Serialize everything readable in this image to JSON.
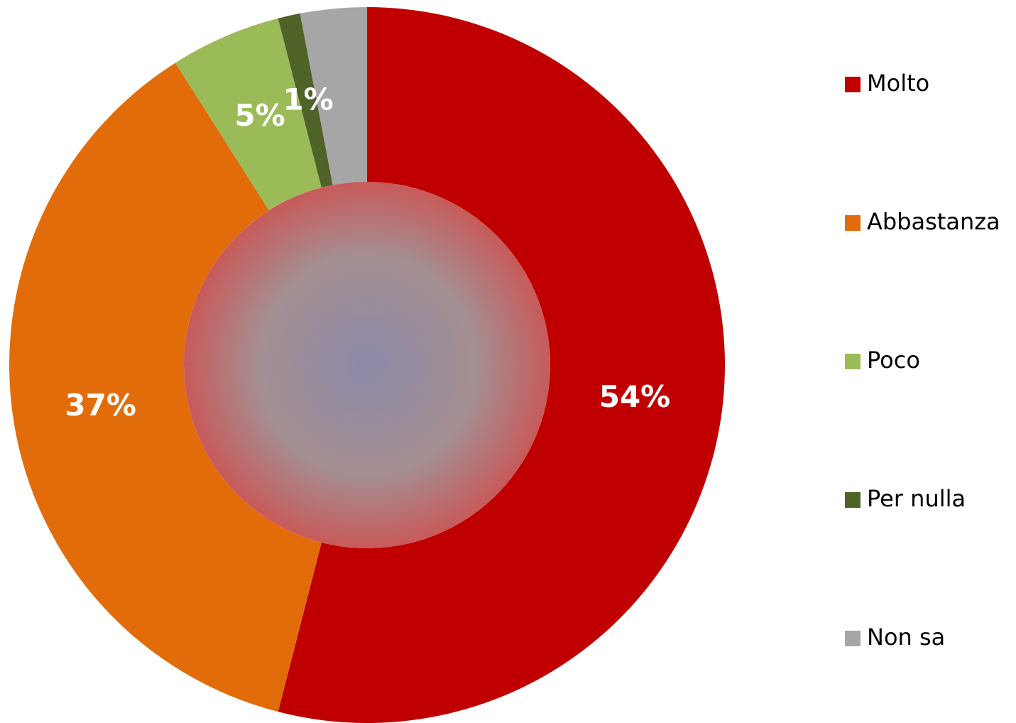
{
  "chart_data": {
    "type": "donut",
    "categories": [
      "Molto",
      "Abbastanza",
      "Poco",
      "Per nulla",
      "Non sa"
    ],
    "values": [
      54,
      37,
      5,
      1,
      3
    ],
    "value_labels": [
      "54%",
      "37%",
      "5%",
      "1%",
      null
    ],
    "colors": [
      "#c00000",
      "#e36c0a",
      "#9bbb59",
      "#4f6228",
      "#a6a6a6"
    ],
    "legend": "right"
  }
}
